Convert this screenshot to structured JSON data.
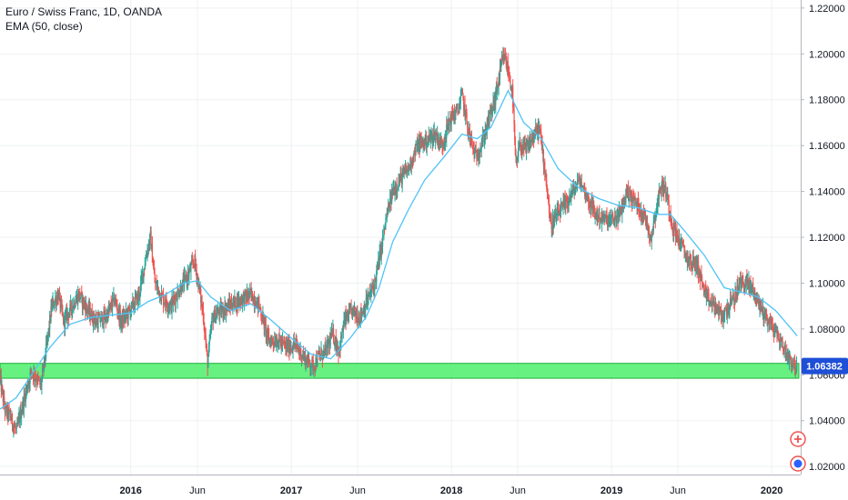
{
  "header": {
    "symbol": "Euro / Swiss Franc, 1D, OANDA",
    "indicator": "EMA (50, close)"
  },
  "colors": {
    "up": "#26a69a",
    "down": "#ef5350",
    "ema": "#4fc3f7",
    "zone_fill": "#4cef6a",
    "zone_border": "#1fae3a",
    "grid": "#eef0f3",
    "axis_text": "#131722",
    "price_label_bg": "#1e4fd6"
  },
  "price_label": "1.06382",
  "chart_data": {
    "type": "candlestick",
    "title": "",
    "y_axis": {
      "ticks": [
        "1.22000",
        "1.20000",
        "1.18000",
        "1.16000",
        "1.14000",
        "1.12000",
        "1.10000",
        "1.08000",
        "1.06000",
        "1.04000",
        "1.02000"
      ],
      "range": [
        1.0165,
        1.2235
      ],
      "position": "right"
    },
    "x_axis": {
      "ticks": [
        {
          "label": "2016",
          "date": "2016-01-01"
        },
        {
          "label": "Jun",
          "date": "2016-06-01"
        },
        {
          "label": "2017",
          "date": "2017-01-01"
        },
        {
          "label": "Jun",
          "date": "2017-06-01"
        },
        {
          "label": "2018",
          "date": "2018-01-01"
        },
        {
          "label": "Jun",
          "date": "2018-06-01"
        },
        {
          "label": "2019",
          "date": "2019-01-01"
        },
        {
          "label": "Jun",
          "date": "2019-06-01"
        },
        {
          "label": "2020",
          "date": "2020-01-01"
        }
      ],
      "range": [
        "2015-03-09",
        "2020-03-07"
      ]
    },
    "series": [
      {
        "name": "Euro / Swiss Franc, 1D, OANDA",
        "kind": "price_path",
        "points": [
          [
            "2015-03-09",
            1.058
          ],
          [
            "2015-03-20",
            1.045
          ],
          [
            "2015-04-01",
            1.042
          ],
          [
            "2015-04-15",
            1.035
          ],
          [
            "2015-05-01",
            1.048
          ],
          [
            "2015-05-20",
            1.062
          ],
          [
            "2015-06-10",
            1.055
          ],
          [
            "2015-06-25",
            1.075
          ],
          [
            "2015-07-05",
            1.09
          ],
          [
            "2015-07-20",
            1.095
          ],
          [
            "2015-08-01",
            1.083
          ],
          [
            "2015-08-20",
            1.09
          ],
          [
            "2015-09-05",
            1.095
          ],
          [
            "2015-09-25",
            1.088
          ],
          [
            "2015-10-15",
            1.083
          ],
          [
            "2015-11-05",
            1.085
          ],
          [
            "2015-11-25",
            1.093
          ],
          [
            "2015-12-10",
            1.083
          ],
          [
            "2015-12-30",
            1.088
          ],
          [
            "2016-01-20",
            1.095
          ],
          [
            "2016-02-05",
            1.112
          ],
          [
            "2016-02-15",
            1.12
          ],
          [
            "2016-02-25",
            1.1
          ],
          [
            "2016-03-15",
            1.093
          ],
          [
            "2016-04-01",
            1.09
          ],
          [
            "2016-04-20",
            1.097
          ],
          [
            "2016-05-10",
            1.103
          ],
          [
            "2016-05-25",
            1.11
          ],
          [
            "2016-06-05",
            1.098
          ],
          [
            "2016-06-15",
            1.085
          ],
          [
            "2016-06-24",
            1.065
          ],
          [
            "2016-07-05",
            1.085
          ],
          [
            "2016-07-25",
            1.088
          ],
          [
            "2016-08-20",
            1.091
          ],
          [
            "2016-09-10",
            1.093
          ],
          [
            "2016-10-01",
            1.095
          ],
          [
            "2016-10-20",
            1.09
          ],
          [
            "2016-11-10",
            1.075
          ],
          [
            "2016-12-01",
            1.075
          ],
          [
            "2016-12-20",
            1.072
          ],
          [
            "2017-01-10",
            1.073
          ],
          [
            "2017-02-01",
            1.067
          ],
          [
            "2017-02-20",
            1.064
          ],
          [
            "2017-03-05",
            1.068
          ],
          [
            "2017-03-20",
            1.07
          ],
          [
            "2017-04-05",
            1.078
          ],
          [
            "2017-04-20",
            1.07
          ],
          [
            "2017-05-01",
            1.083
          ],
          [
            "2017-05-20",
            1.088
          ],
          [
            "2017-06-05",
            1.085
          ],
          [
            "2017-06-25",
            1.093
          ],
          [
            "2017-07-10",
            1.1
          ],
          [
            "2017-07-25",
            1.115
          ],
          [
            "2017-08-05",
            1.128
          ],
          [
            "2017-08-20",
            1.14
          ],
          [
            "2017-09-05",
            1.145
          ],
          [
            "2017-09-25",
            1.15
          ],
          [
            "2017-10-15",
            1.16
          ],
          [
            "2017-11-05",
            1.162
          ],
          [
            "2017-11-25",
            1.165
          ],
          [
            "2017-12-10",
            1.16
          ],
          [
            "2017-12-30",
            1.172
          ],
          [
            "2018-01-15",
            1.175
          ],
          [
            "2018-01-25",
            1.182
          ],
          [
            "2018-02-10",
            1.165
          ],
          [
            "2018-02-25",
            1.155
          ],
          [
            "2018-03-10",
            1.16
          ],
          [
            "2018-03-25",
            1.17
          ],
          [
            "2018-04-10",
            1.18
          ],
          [
            "2018-04-25",
            1.195
          ],
          [
            "2018-05-01",
            1.199
          ],
          [
            "2018-05-10",
            1.193
          ],
          [
            "2018-05-20",
            1.183
          ],
          [
            "2018-05-28",
            1.15
          ],
          [
            "2018-06-05",
            1.16
          ],
          [
            "2018-06-20",
            1.158
          ],
          [
            "2018-07-01",
            1.162
          ],
          [
            "2018-07-20",
            1.168
          ],
          [
            "2018-08-05",
            1.145
          ],
          [
            "2018-08-15",
            1.125
          ],
          [
            "2018-09-01",
            1.13
          ],
          [
            "2018-09-20",
            1.135
          ],
          [
            "2018-10-05",
            1.14
          ],
          [
            "2018-10-20",
            1.145
          ],
          [
            "2018-11-05",
            1.138
          ],
          [
            "2018-11-25",
            1.13
          ],
          [
            "2018-12-10",
            1.128
          ],
          [
            "2019-01-01",
            1.127
          ],
          [
            "2019-01-20",
            1.13
          ],
          [
            "2019-02-05",
            1.14
          ],
          [
            "2019-02-25",
            1.135
          ],
          [
            "2019-03-15",
            1.13
          ],
          [
            "2019-04-01",
            1.12
          ],
          [
            "2019-04-15",
            1.135
          ],
          [
            "2019-04-25",
            1.143
          ],
          [
            "2019-05-05",
            1.14
          ],
          [
            "2019-05-20",
            1.125
          ],
          [
            "2019-06-05",
            1.118
          ],
          [
            "2019-06-25",
            1.11
          ],
          [
            "2019-07-15",
            1.108
          ],
          [
            "2019-08-05",
            1.093
          ],
          [
            "2019-08-25",
            1.09
          ],
          [
            "2019-09-10",
            1.085
          ],
          [
            "2019-09-25",
            1.09
          ],
          [
            "2019-10-05",
            1.092
          ],
          [
            "2019-10-20",
            1.1
          ],
          [
            "2019-11-05",
            1.1
          ],
          [
            "2019-11-20",
            1.097
          ],
          [
            "2019-12-05",
            1.09
          ],
          [
            "2019-12-20",
            1.085
          ],
          [
            "2020-01-05",
            1.08
          ],
          [
            "2020-01-20",
            1.075
          ],
          [
            "2020-02-01",
            1.07
          ],
          [
            "2020-02-15",
            1.066
          ],
          [
            "2020-02-28",
            1.063
          ]
        ]
      },
      {
        "name": "EMA (50, close)",
        "kind": "line",
        "points": [
          [
            "2015-03-09",
            1.045
          ],
          [
            "2015-04-15",
            1.05
          ],
          [
            "2015-05-20",
            1.06
          ],
          [
            "2015-07-01",
            1.072
          ],
          [
            "2015-08-15",
            1.082
          ],
          [
            "2015-10-01",
            1.085
          ],
          [
            "2015-11-15",
            1.086
          ],
          [
            "2016-01-01",
            1.087
          ],
          [
            "2016-02-10",
            1.092
          ],
          [
            "2016-03-20",
            1.095
          ],
          [
            "2016-05-01",
            1.1
          ],
          [
            "2016-06-01",
            1.101
          ],
          [
            "2016-07-01",
            1.094
          ],
          [
            "2016-08-15",
            1.088
          ],
          [
            "2016-10-01",
            1.091
          ],
          [
            "2016-11-15",
            1.084
          ],
          [
            "2017-01-01",
            1.076
          ],
          [
            "2017-02-15",
            1.069
          ],
          [
            "2017-04-01",
            1.067
          ],
          [
            "2017-05-15",
            1.076
          ],
          [
            "2017-06-20",
            1.085
          ],
          [
            "2017-07-20",
            1.098
          ],
          [
            "2017-08-20",
            1.118
          ],
          [
            "2017-09-25",
            1.132
          ],
          [
            "2017-11-01",
            1.145
          ],
          [
            "2017-12-15",
            1.155
          ],
          [
            "2018-01-25",
            1.165
          ],
          [
            "2018-03-01",
            1.163
          ],
          [
            "2018-04-01",
            1.168
          ],
          [
            "2018-05-10",
            1.184
          ],
          [
            "2018-06-15",
            1.17
          ],
          [
            "2018-07-25",
            1.163
          ],
          [
            "2018-09-01",
            1.15
          ],
          [
            "2018-10-15",
            1.142
          ],
          [
            "2018-12-01",
            1.137
          ],
          [
            "2019-01-15",
            1.134
          ],
          [
            "2019-03-01",
            1.133
          ],
          [
            "2019-04-15",
            1.13
          ],
          [
            "2019-05-15",
            1.13
          ],
          [
            "2019-06-20",
            1.122
          ],
          [
            "2019-08-01",
            1.112
          ],
          [
            "2019-09-15",
            1.098
          ],
          [
            "2019-10-25",
            1.096
          ],
          [
            "2019-12-01",
            1.094
          ],
          [
            "2020-01-10",
            1.088
          ],
          [
            "2020-02-15",
            1.08
          ],
          [
            "2020-02-28",
            1.077
          ]
        ]
      }
    ],
    "zones": [
      {
        "name": "support",
        "low": 1.0585,
        "high": 1.065,
        "start": "2015-03-09",
        "end": "2020-03-07"
      }
    ],
    "legend": "none",
    "grid": true
  }
}
